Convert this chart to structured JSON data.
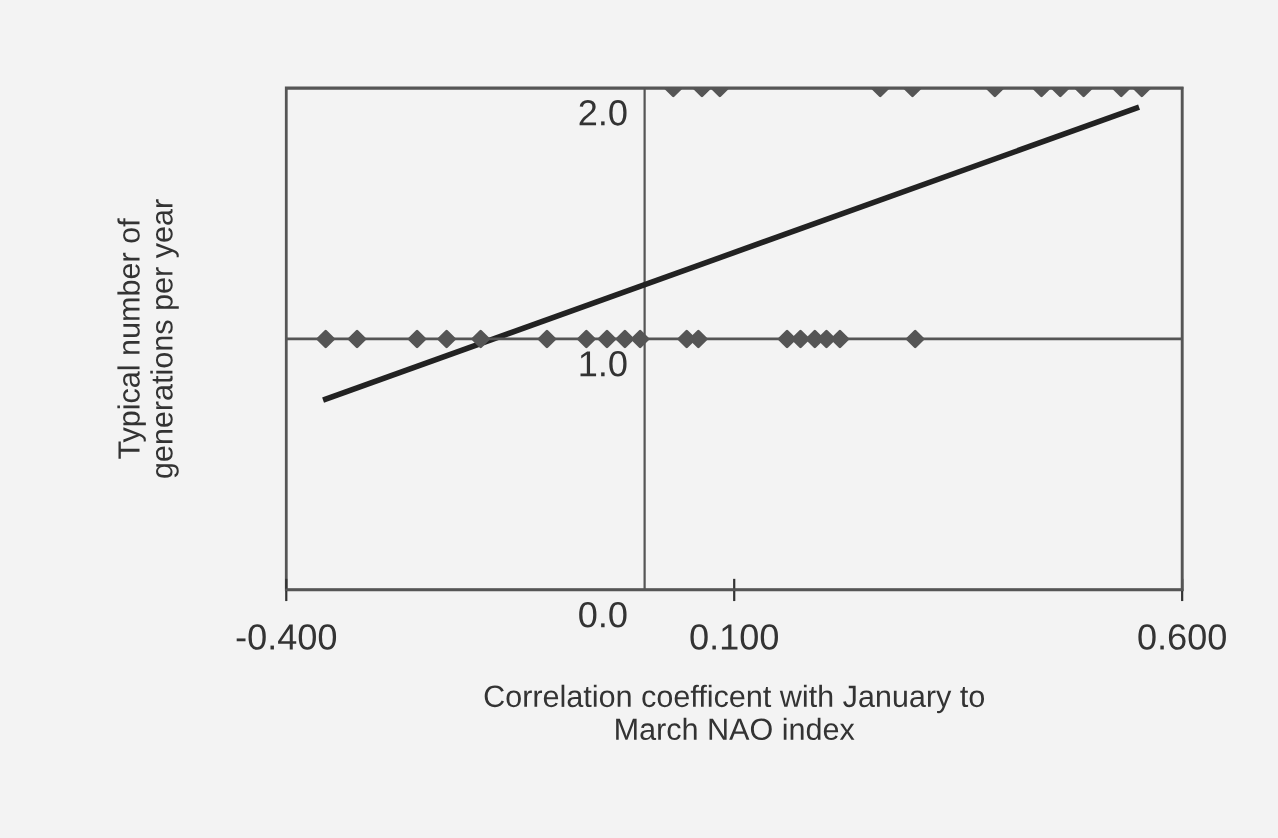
{
  "chart_data": {
    "type": "scatter",
    "xlabel": "Correlation coefficent with January to\nMarch NAO index",
    "ylabel": "Typical number of\ngenerations per year",
    "series": [
      {
        "color": "#555555",
        "x": [
          0.032,
          0.064,
          0.084,
          0.263,
          0.299,
          0.391,
          0.443,
          0.464,
          0.49,
          0.532,
          0.555,
          -0.356,
          -0.321,
          -0.254,
          -0.221,
          -0.183,
          -0.109,
          -0.065,
          -0.042,
          -0.022,
          -0.005,
          0.047,
          0.06,
          0.159,
          0.174,
          0.19,
          0.203,
          0.218,
          0.302
        ],
        "values": [
          2,
          2,
          2,
          2,
          2,
          2,
          2,
          2,
          2,
          2,
          2,
          1,
          1,
          1,
          1,
          1,
          1,
          1,
          1,
          1,
          1,
          1,
          1,
          1,
          1,
          1,
          1,
          1,
          1
        ],
        "marker": "diamond"
      },
      {
        "type": "line",
        "color": "#222222",
        "x": [
          -0.356,
          0.549
        ],
        "values": [
          0.76,
          1.92
        ],
        "marker": "none"
      }
    ],
    "xlim": [
      -0.4,
      0.6
    ],
    "ylim": [
      0,
      2
    ],
    "xticks": [
      {
        "value": -0.4,
        "label": "-0.400"
      },
      {
        "value": 0.1,
        "label": "0.100"
      },
      {
        "value": 0.6,
        "label": "0.600"
      }
    ],
    "yticks": [
      {
        "value": 0,
        "label": "0.0"
      },
      {
        "value": 1,
        "label": "1.0"
      },
      {
        "value": 2,
        "label": "2.0"
      }
    ],
    "grid": "y"
  }
}
